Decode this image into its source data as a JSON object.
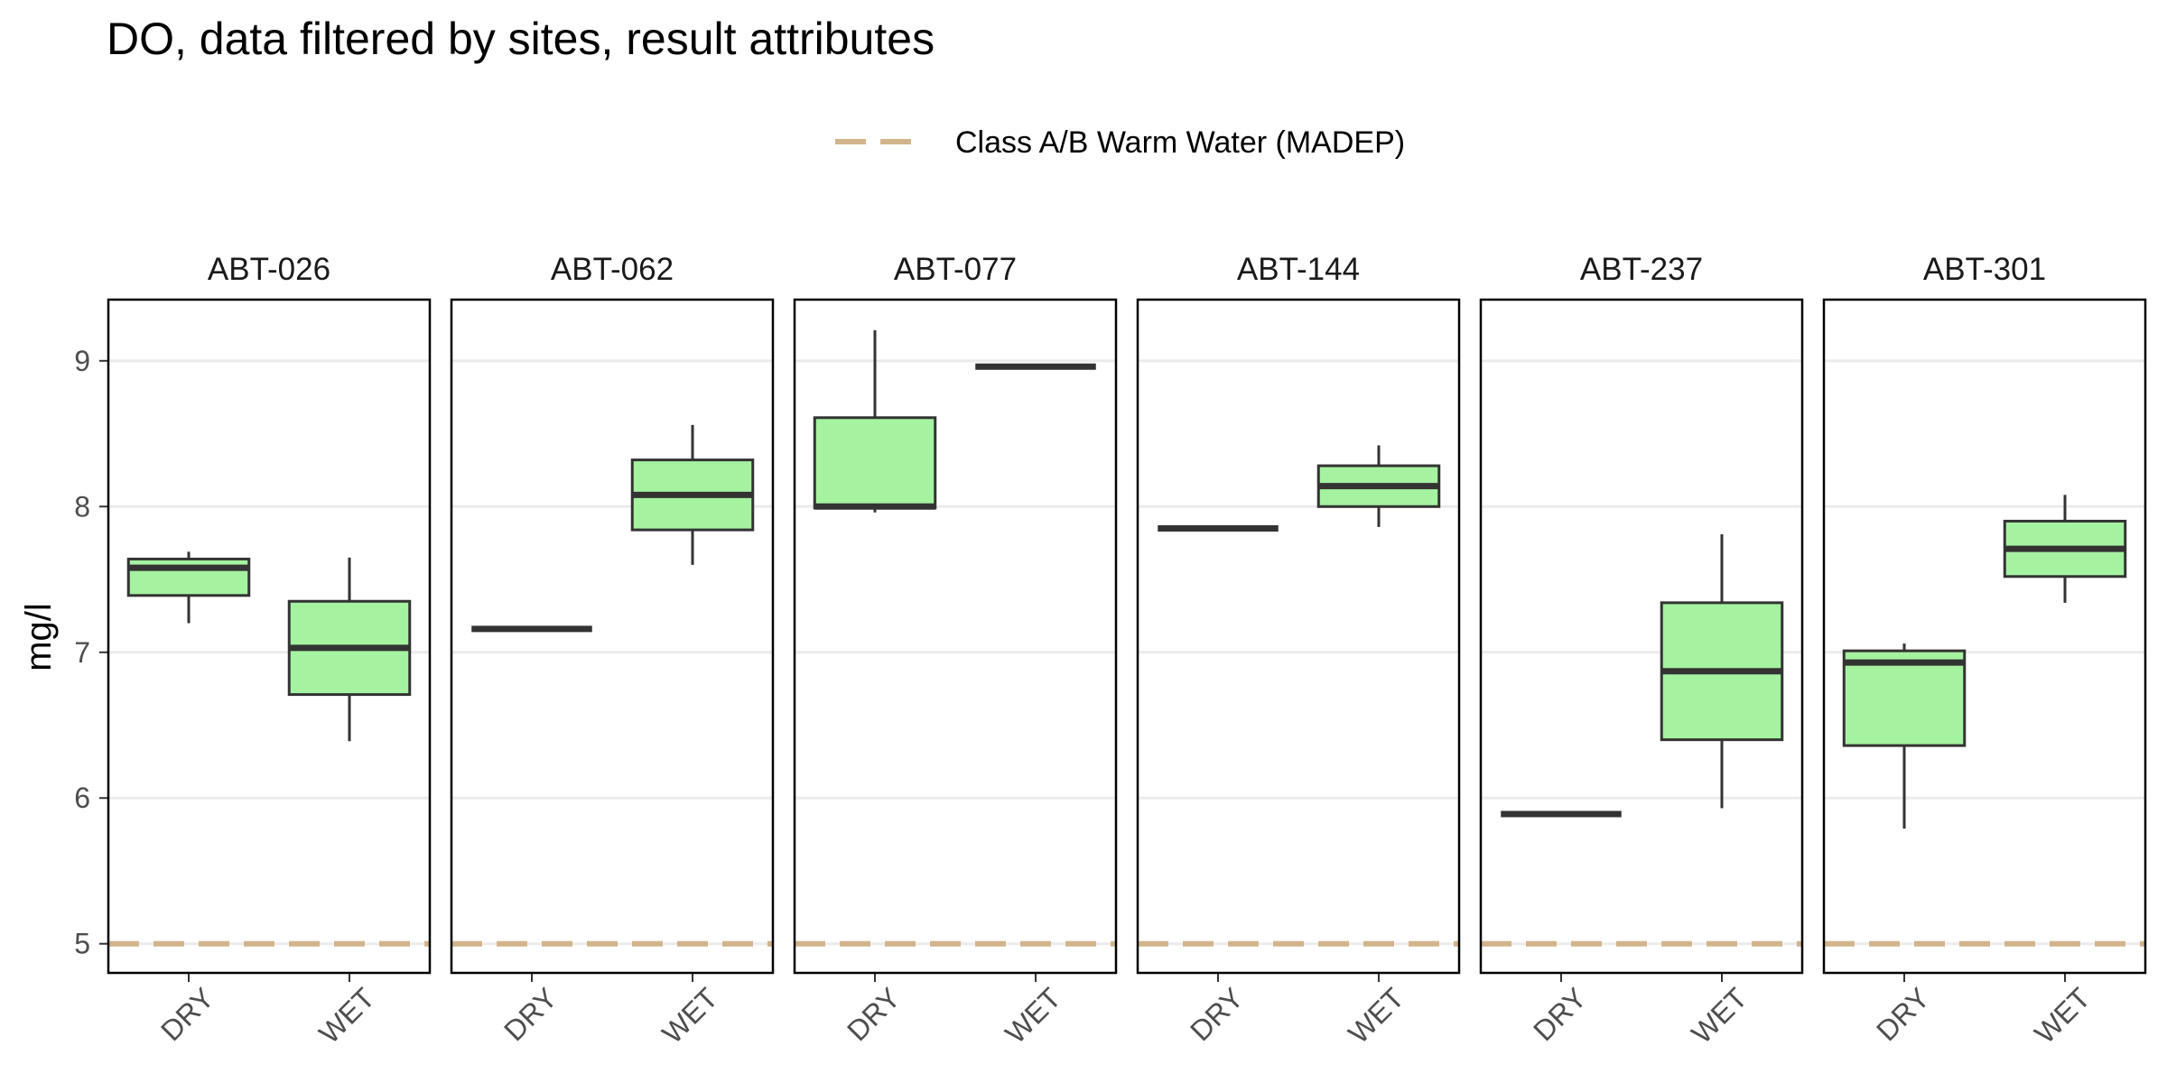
{
  "chart_data": {
    "type": "boxplot",
    "title": "DO, data filtered by sites, result attributes",
    "ylabel": "mg/l",
    "xlabel": "",
    "ylim": [
      4.8,
      9.42
    ],
    "yticks": [
      5,
      6,
      7,
      8,
      9
    ],
    "categories": [
      "DRY",
      "WET"
    ],
    "grid": true,
    "legend": {
      "position": "top",
      "entries": [
        {
          "label": "Class A/B Warm Water (MADEP)",
          "style": "dashed",
          "color": "#d2b48c"
        }
      ]
    },
    "reference_line": {
      "name": "Class A/B Warm Water (MADEP)",
      "y": 5,
      "color": "#d2b48c"
    },
    "box_fill": "#a5f2a0",
    "box_stroke": "#333333",
    "panels": [
      {
        "site": "ABT-026",
        "boxes": [
          {
            "category": "DRY",
            "min": 7.2,
            "q1": 7.39,
            "median": 7.58,
            "q3": 7.64,
            "max": 7.69
          },
          {
            "category": "WET",
            "min": 6.39,
            "q1": 6.71,
            "median": 7.03,
            "q3": 7.35,
            "max": 7.65
          }
        ]
      },
      {
        "site": "ABT-062",
        "boxes": [
          {
            "category": "DRY",
            "min": 7.16,
            "q1": 7.16,
            "median": 7.16,
            "q3": 7.16,
            "max": 7.16
          },
          {
            "category": "WET",
            "min": 7.6,
            "q1": 7.84,
            "median": 8.08,
            "q3": 8.32,
            "max": 8.56
          }
        ]
      },
      {
        "site": "ABT-077",
        "boxes": [
          {
            "category": "DRY",
            "min": 7.96,
            "q1": 7.99,
            "median": 8.0,
            "q3": 8.61,
            "max": 9.21
          },
          {
            "category": "WET",
            "min": 8.96,
            "q1": 8.96,
            "median": 8.96,
            "q3": 8.96,
            "max": 8.96
          }
        ]
      },
      {
        "site": "ABT-144",
        "boxes": [
          {
            "category": "DRY",
            "min": 7.85,
            "q1": 7.85,
            "median": 7.85,
            "q3": 7.85,
            "max": 7.85
          },
          {
            "category": "WET",
            "min": 7.86,
            "q1": 8.0,
            "median": 8.14,
            "q3": 8.28,
            "max": 8.42
          }
        ]
      },
      {
        "site": "ABT-237",
        "boxes": [
          {
            "category": "DRY",
            "min": 5.89,
            "q1": 5.89,
            "median": 5.89,
            "q3": 5.89,
            "max": 5.89
          },
          {
            "category": "WET",
            "min": 5.93,
            "q1": 6.4,
            "median": 6.87,
            "q3": 7.34,
            "max": 7.81
          }
        ]
      },
      {
        "site": "ABT-301",
        "boxes": [
          {
            "category": "DRY",
            "min": 5.79,
            "q1": 6.36,
            "median": 6.93,
            "q3": 7.01,
            "max": 7.06
          },
          {
            "category": "WET",
            "min": 7.34,
            "q1": 7.52,
            "median": 7.71,
            "q3": 7.9,
            "max": 8.08
          }
        ]
      }
    ]
  }
}
